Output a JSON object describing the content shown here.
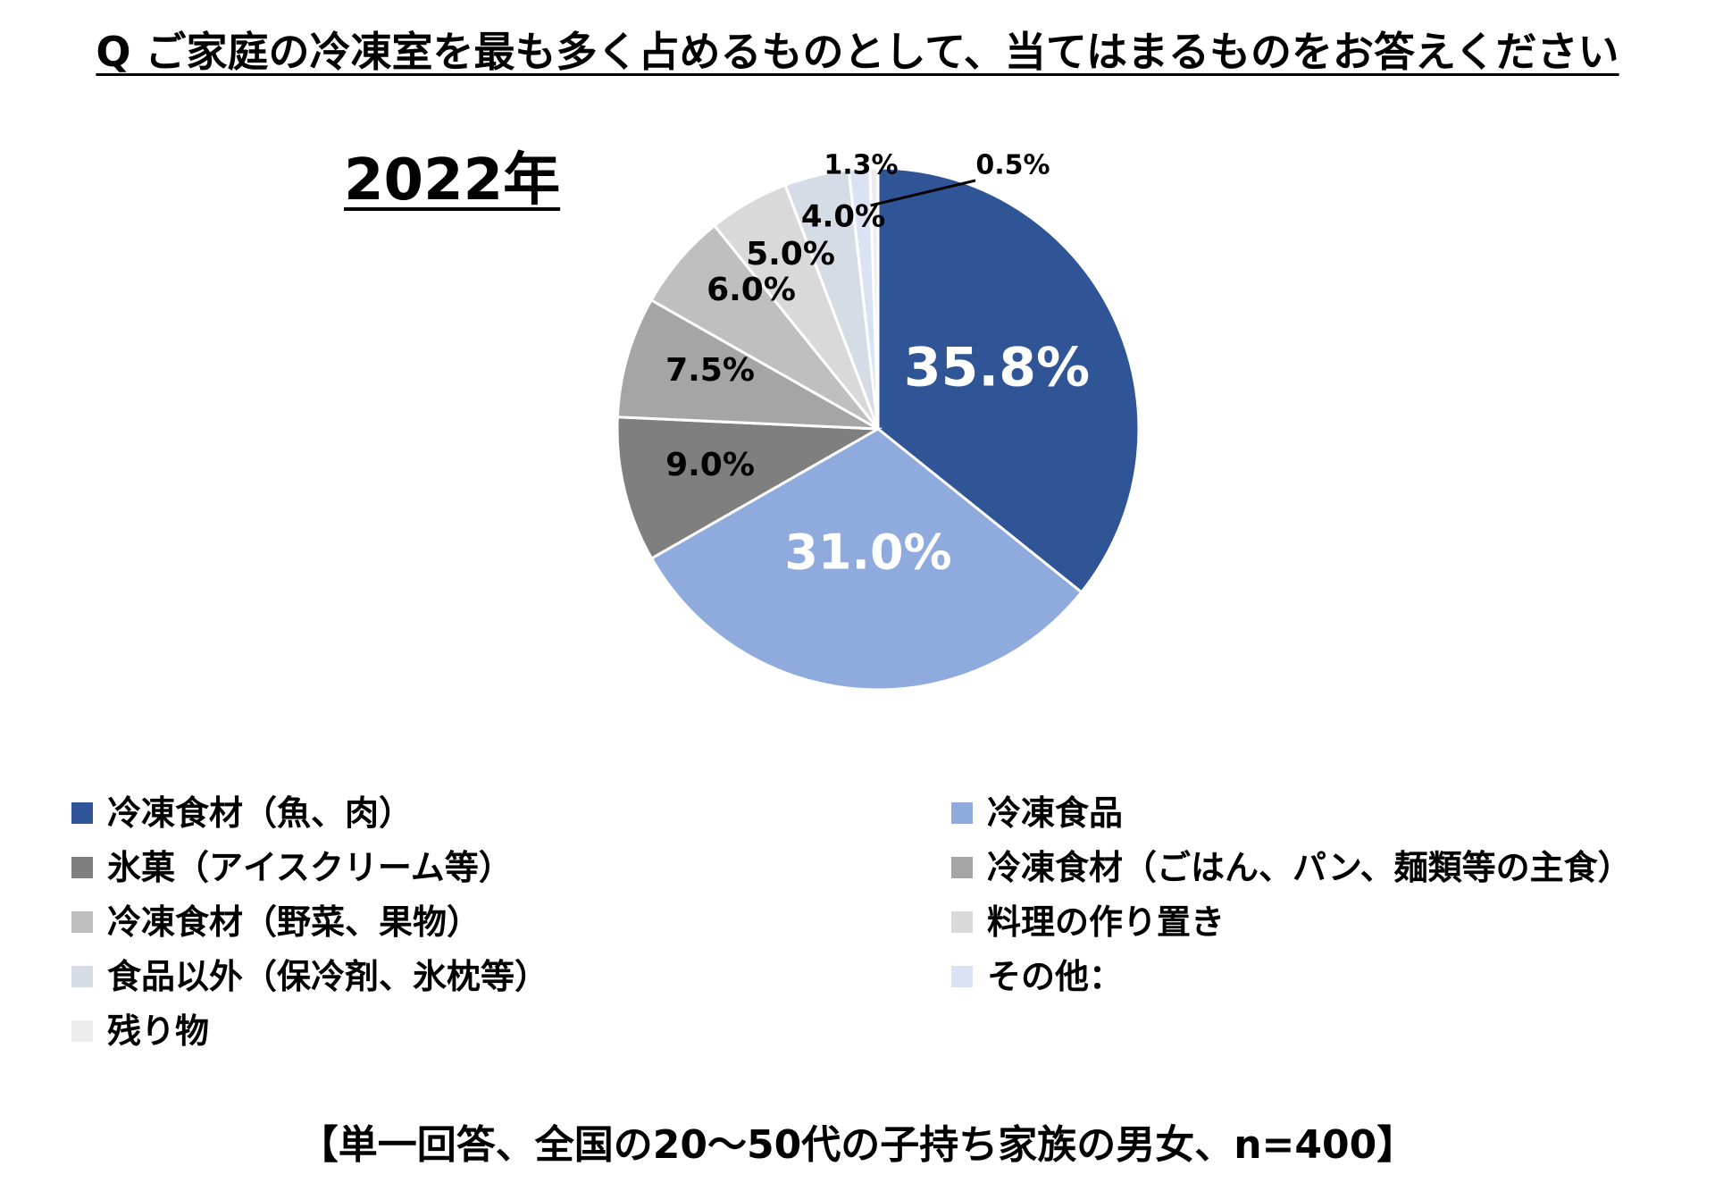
{
  "question": "Q ご家庭の冷凍室を最も多く占めるものとして、当てはまるものをお答えください",
  "year_label": "2022年",
  "footnote": "【単一回答、全国の20～50代の子持ち家族の男女、n=400】",
  "chart_data": {
    "type": "pie",
    "title": "2022年",
    "legend_position": "bottom",
    "unit": "%",
    "slices": [
      {
        "name": "冷凍食材（魚、肉）",
        "value": 35.8,
        "label": "35.8%",
        "color": "#2F5597"
      },
      {
        "name": "冷凍食品",
        "value": 31.0,
        "label": "31.0%",
        "color": "#8FAADC"
      },
      {
        "name": "氷菓（アイスクリーム等）",
        "value": 9.0,
        "label": "9.0%",
        "color": "#7F7F7F"
      },
      {
        "name": "冷凍食材（ごはん、パン、麺類等の主食）",
        "value": 7.5,
        "label": "7.5%",
        "color": "#A5A5A5"
      },
      {
        "name": "冷凍食材（野菜、果物）",
        "value": 6.0,
        "label": "6.0%",
        "color": "#BFBFBF"
      },
      {
        "name": "料理の作り置き",
        "value": 5.0,
        "label": "5.0%",
        "color": "#D9D9D9"
      },
      {
        "name": "食品以外（保冷剤、氷枕等）",
        "value": 4.0,
        "label": "4.0%",
        "color": "#D6DCE5"
      },
      {
        "name": "その他：",
        "value": 1.3,
        "label": "1.3%",
        "color": "#DAE3F3"
      },
      {
        "name": "残り物",
        "value": 0.5,
        "label": "0.5%",
        "color": "#EDEDED"
      }
    ]
  }
}
